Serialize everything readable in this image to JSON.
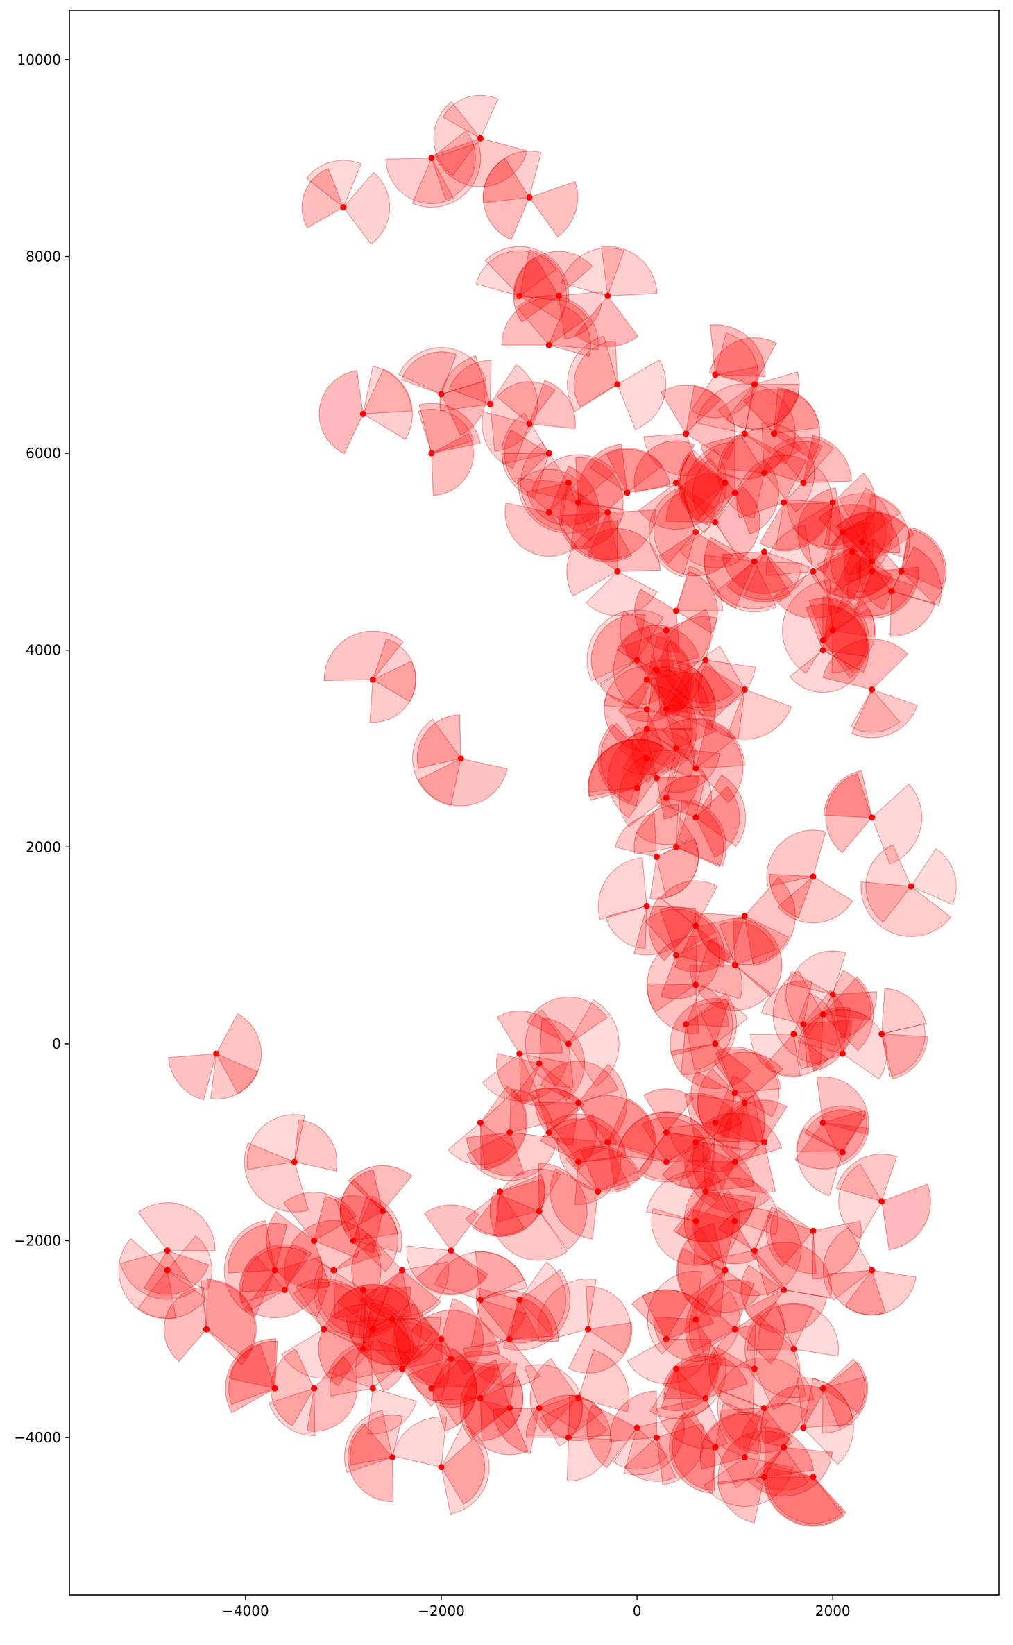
{
  "chart_data": {
    "type": "scatter",
    "title": "",
    "xlabel": "",
    "ylabel": "",
    "xlim": [
      -5800,
      3700
    ],
    "ylim": [
      -5600,
      10500
    ],
    "xticks": [
      -4000,
      -2000,
      0,
      2000
    ],
    "yticks": [
      -4000,
      -2000,
      0,
      2000,
      4000,
      6000,
      8000,
      10000
    ],
    "xtick_labels": [
      "−4000",
      "−2000",
      "0",
      "2000"
    ],
    "ytick_labels": [
      "−4000",
      "−2000",
      "0",
      "2000",
      "4000",
      "6000",
      "8000",
      "10000"
    ],
    "grid": false,
    "legend": "none",
    "colors": {
      "marker": "#ff0000",
      "wedge_fill": "#ff0000",
      "wedge_edge": "#cc0000",
      "axis": "#000000"
    },
    "marker": "point with three translucent wedge sectors",
    "wedge_radius": 480,
    "points": [
      {
        "x": -1600,
        "y": 9200
      },
      {
        "x": -2100,
        "y": 9000
      },
      {
        "x": -1100,
        "y": 8600
      },
      {
        "x": -3000,
        "y": 8500
      },
      {
        "x": -1200,
        "y": 7600
      },
      {
        "x": -800,
        "y": 7600
      },
      {
        "x": -300,
        "y": 7600
      },
      {
        "x": -900,
        "y": 7100
      },
      {
        "x": -200,
        "y": 6700
      },
      {
        "x": 800,
        "y": 6800
      },
      {
        "x": 1200,
        "y": 6700
      },
      {
        "x": -2000,
        "y": 6600
      },
      {
        "x": -1500,
        "y": 6500
      },
      {
        "x": -2800,
        "y": 6400
      },
      {
        "x": -1100,
        "y": 6300
      },
      {
        "x": 500,
        "y": 6200
      },
      {
        "x": 1100,
        "y": 6200
      },
      {
        "x": 1400,
        "y": 6200
      },
      {
        "x": -2100,
        "y": 6000
      },
      {
        "x": -900,
        "y": 6000
      },
      {
        "x": 1300,
        "y": 5800
      },
      {
        "x": -700,
        "y": 5700
      },
      {
        "x": 400,
        "y": 5700
      },
      {
        "x": 900,
        "y": 5700
      },
      {
        "x": 1700,
        "y": 5700
      },
      {
        "x": -100,
        "y": 5600
      },
      {
        "x": 1000,
        "y": 5600
      },
      {
        "x": -600,
        "y": 5500
      },
      {
        "x": 1500,
        "y": 5500
      },
      {
        "x": 2000,
        "y": 5500
      },
      {
        "x": -900,
        "y": 5400
      },
      {
        "x": -300,
        "y": 5400
      },
      {
        "x": 800,
        "y": 5300
      },
      {
        "x": 600,
        "y": 5200
      },
      {
        "x": 2100,
        "y": 5200
      },
      {
        "x": 2300,
        "y": 5100
      },
      {
        "x": 1300,
        "y": 5000
      },
      {
        "x": 2200,
        "y": 5000
      },
      {
        "x": 1200,
        "y": 4900
      },
      {
        "x": 2400,
        "y": 4900
      },
      {
        "x": -200,
        "y": 4800
      },
      {
        "x": 1800,
        "y": 4800
      },
      {
        "x": 2400,
        "y": 4800
      },
      {
        "x": 2700,
        "y": 4800
      },
      {
        "x": 2600,
        "y": 4600
      },
      {
        "x": 400,
        "y": 4400
      },
      {
        "x": 300,
        "y": 4200
      },
      {
        "x": 2000,
        "y": 4200
      },
      {
        "x": 1900,
        "y": 4100
      },
      {
        "x": 1900,
        "y": 4000
      },
      {
        "x": 0,
        "y": 3900
      },
      {
        "x": 700,
        "y": 3900
      },
      {
        "x": 200,
        "y": 3800
      },
      {
        "x": 100,
        "y": 3700
      },
      {
        "x": -2700,
        "y": 3700
      },
      {
        "x": 1100,
        "y": 3600
      },
      {
        "x": 2400,
        "y": 3600
      },
      {
        "x": 100,
        "y": 3400
      },
      {
        "x": 300,
        "y": 3400
      },
      {
        "x": 100,
        "y": 3200
      },
      {
        "x": 400,
        "y": 3000
      },
      {
        "x": -1800,
        "y": 2900
      },
      {
        "x": 100,
        "y": 2900
      },
      {
        "x": 200,
        "y": 2700
      },
      {
        "x": 600,
        "y": 2800
      },
      {
        "x": 0,
        "y": 2600
      },
      {
        "x": 300,
        "y": 2500
      },
      {
        "x": 2400,
        "y": 2300
      },
      {
        "x": 600,
        "y": 2300
      },
      {
        "x": 400,
        "y": 2000
      },
      {
        "x": 200,
        "y": 1900
      },
      {
        "x": 1800,
        "y": 1700
      },
      {
        "x": 2800,
        "y": 1600
      },
      {
        "x": 100,
        "y": 1400
      },
      {
        "x": 1100,
        "y": 1300
      },
      {
        "x": 600,
        "y": 1200
      },
      {
        "x": 400,
        "y": 900
      },
      {
        "x": 1000,
        "y": 800
      },
      {
        "x": 600,
        "y": 600
      },
      {
        "x": 2000,
        "y": 500
      },
      {
        "x": 1900,
        "y": 300
      },
      {
        "x": 500,
        "y": 200
      },
      {
        "x": 1700,
        "y": 200
      },
      {
        "x": 1600,
        "y": 100
      },
      {
        "x": 2500,
        "y": 100
      },
      {
        "x": 800,
        "y": 0
      },
      {
        "x": -700,
        "y": 0
      },
      {
        "x": -4300,
        "y": -100
      },
      {
        "x": -1200,
        "y": -100
      },
      {
        "x": 2100,
        "y": -100
      },
      {
        "x": -1000,
        "y": -200
      },
      {
        "x": 1000,
        "y": -500
      },
      {
        "x": -600,
        "y": -600
      },
      {
        "x": 1100,
        "y": -600
      },
      {
        "x": -1600,
        "y": -800
      },
      {
        "x": 800,
        "y": -800
      },
      {
        "x": -900,
        "y": -900
      },
      {
        "x": 300,
        "y": -900
      },
      {
        "x": 1900,
        "y": -800
      },
      {
        "x": -1300,
        "y": -900
      },
      {
        "x": -300,
        "y": -1000
      },
      {
        "x": 600,
        "y": -1000
      },
      {
        "x": 1300,
        "y": -1000
      },
      {
        "x": -3500,
        "y": -1200
      },
      {
        "x": -600,
        "y": -1200
      },
      {
        "x": 300,
        "y": -1200
      },
      {
        "x": 1000,
        "y": -1200
      },
      {
        "x": 2100,
        "y": -1100
      },
      {
        "x": -1400,
        "y": -1500
      },
      {
        "x": 700,
        "y": -1500
      },
      {
        "x": -400,
        "y": -1500
      },
      {
        "x": 2500,
        "y": -1600
      },
      {
        "x": -2600,
        "y": -1700
      },
      {
        "x": -1000,
        "y": -1700
      },
      {
        "x": 600,
        "y": -1800
      },
      {
        "x": 1000,
        "y": -1800
      },
      {
        "x": 1800,
        "y": -1900
      },
      {
        "x": -3300,
        "y": -2000
      },
      {
        "x": -2900,
        "y": -2000
      },
      {
        "x": -1900,
        "y": -2100
      },
      {
        "x": -4800,
        "y": -2100
      },
      {
        "x": 1200,
        "y": -2100
      },
      {
        "x": -3700,
        "y": -2300
      },
      {
        "x": -3100,
        "y": -2300
      },
      {
        "x": -2400,
        "y": -2300
      },
      {
        "x": -4800,
        "y": -2300
      },
      {
        "x": 900,
        "y": -2300
      },
      {
        "x": 2400,
        "y": -2300
      },
      {
        "x": -2800,
        "y": -2500
      },
      {
        "x": -3600,
        "y": -2500
      },
      {
        "x": 1500,
        "y": -2500
      },
      {
        "x": -1200,
        "y": -2600
      },
      {
        "x": -1600,
        "y": -2600
      },
      {
        "x": -2500,
        "y": -2800
      },
      {
        "x": 600,
        "y": -2800
      },
      {
        "x": -3200,
        "y": -2900
      },
      {
        "x": -2700,
        "y": -2900
      },
      {
        "x": -4400,
        "y": -2900
      },
      {
        "x": -500,
        "y": -2900
      },
      {
        "x": 1000,
        "y": -2900
      },
      {
        "x": -2000,
        "y": -3000
      },
      {
        "x": -1300,
        "y": -3000
      },
      {
        "x": 300,
        "y": -3000
      },
      {
        "x": -2800,
        "y": -3100
      },
      {
        "x": 1600,
        "y": -3100
      },
      {
        "x": -2400,
        "y": -3300
      },
      {
        "x": -1900,
        "y": -3200
      },
      {
        "x": 400,
        "y": -3300
      },
      {
        "x": 1200,
        "y": -3300
      },
      {
        "x": -3700,
        "y": -3500
      },
      {
        "x": -3300,
        "y": -3500
      },
      {
        "x": -2700,
        "y": -3500
      },
      {
        "x": -2100,
        "y": -3500
      },
      {
        "x": 1900,
        "y": -3500
      },
      {
        "x": -1600,
        "y": -3600
      },
      {
        "x": -600,
        "y": -3600
      },
      {
        "x": 700,
        "y": -3600
      },
      {
        "x": -1300,
        "y": -3700
      },
      {
        "x": -1000,
        "y": -3700
      },
      {
        "x": 1300,
        "y": -3700
      },
      {
        "x": 0,
        "y": -3900
      },
      {
        "x": 1700,
        "y": -3900
      },
      {
        "x": -700,
        "y": -4000
      },
      {
        "x": 200,
        "y": -4000
      },
      {
        "x": 1500,
        "y": -4100
      },
      {
        "x": 800,
        "y": -4100
      },
      {
        "x": -2500,
        "y": -4200
      },
      {
        "x": 1100,
        "y": -4200
      },
      {
        "x": -2000,
        "y": -4300
      },
      {
        "x": 1300,
        "y": -4400
      },
      {
        "x": 1800,
        "y": -4400
      }
    ]
  }
}
